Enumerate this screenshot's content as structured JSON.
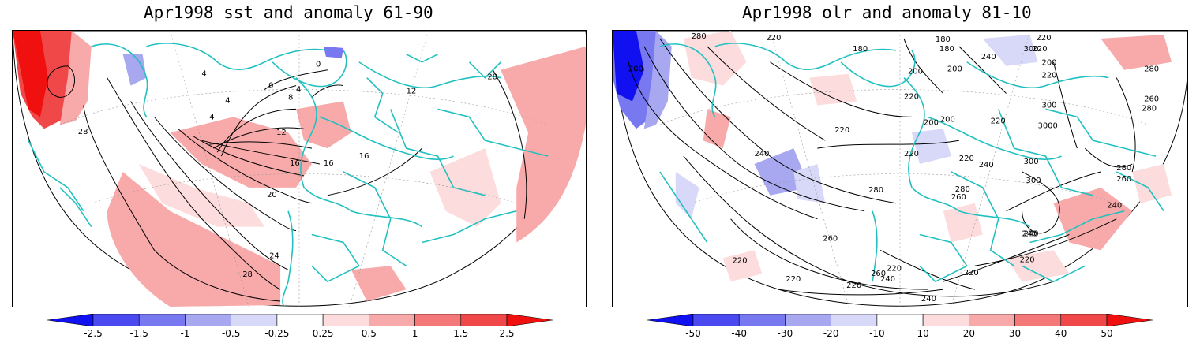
{
  "panels": [
    {
      "title": "Apr1998 sst and anomaly 61-90",
      "colorbar": {
        "ticks": [
          "-2.5",
          "-1.5",
          "-1",
          "-0.5",
          "-0.25",
          "0.25",
          "0.5",
          "1",
          "1.5",
          "2.5"
        ],
        "colors": [
          "#1010f0",
          "#4a4af0",
          "#7878f0",
          "#a8a8f0",
          "#d8d8f8",
          "#ffffff",
          "#fcdcdc",
          "#f8aaaa",
          "#f47878",
          "#f04848",
          "#f01010"
        ]
      },
      "contour_labels": [
        "28",
        "4",
        "0",
        "4",
        "8",
        "0",
        "4",
        "12",
        "16",
        "16",
        "16",
        "20",
        "24",
        "28",
        "28",
        "12",
        "4"
      ]
    },
    {
      "title": "Apr1998 olr and anomaly 81-10",
      "colorbar": {
        "ticks": [
          "-50",
          "-40",
          "-30",
          "-20",
          "-10",
          "10",
          "20",
          "30",
          "40",
          "50"
        ],
        "colors": [
          "#1010f0",
          "#4a4af0",
          "#7878f0",
          "#a8a8f0",
          "#d8d8f8",
          "#ffffff",
          "#fcdcdc",
          "#f8aaaa",
          "#f47878",
          "#f04848",
          "#f01010"
        ]
      },
      "contour_labels": [
        "280",
        "220",
        "180",
        "180",
        "220",
        "240",
        "220",
        "300",
        "200",
        "180",
        "200",
        "220",
        "200",
        "280",
        "200",
        "220",
        "260",
        "200",
        "220",
        "300",
        "3000",
        "220",
        "200",
        "240",
        "220",
        "300",
        "280",
        "240",
        "220",
        "300",
        "280",
        "260",
        "280",
        "260",
        "280",
        "240",
        "240",
        "260",
        "220",
        "220",
        "240",
        "220",
        "220",
        "260",
        "240",
        "220",
        "220",
        "240"
      ]
    }
  ]
}
